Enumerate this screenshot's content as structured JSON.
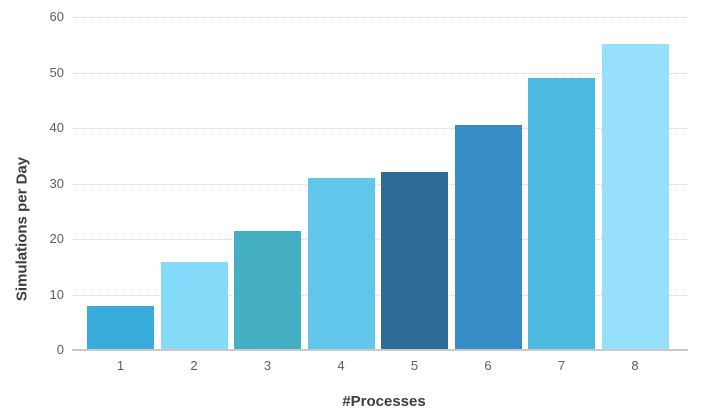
{
  "chart_data": {
    "type": "bar",
    "title": "",
    "xlabel": "#Processes",
    "ylabel": "Simulations per Day",
    "categories": [
      "1",
      "2",
      "3",
      "4",
      "5",
      "6",
      "7",
      "8"
    ],
    "values": [
      8.0,
      15.8,
      21.4,
      31.0,
      32.0,
      40.5,
      49.0,
      55.2
    ],
    "bar_colors": [
      "#3aacdb",
      "#85dbfa",
      "#44aec3",
      "#61c7ea",
      "#2f6b97",
      "#368dc5",
      "#4cb9e1",
      "#97e0fb"
    ],
    "ylim": [
      0,
      60
    ],
    "yticks": [
      0,
      10,
      20,
      30,
      40,
      50,
      60
    ],
    "grid": "horizontal dotted gridlines at each y tick above zero",
    "legend": "none",
    "background": "#ffffff",
    "axis_line_color": "#c9c9c9",
    "grid_color": "#d4d4d4",
    "tick_label_color": "#5f5f5f",
    "axis_title_color": "#3d3d3d"
  }
}
